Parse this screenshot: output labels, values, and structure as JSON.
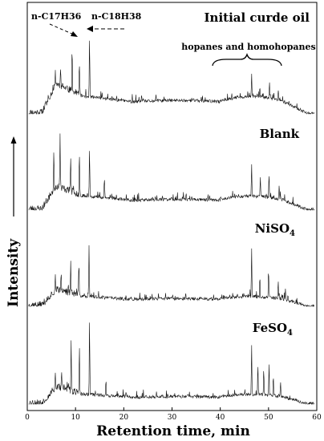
{
  "chart_data": {
    "type": "line",
    "xlabel": "Retention time, min",
    "ylabel": "Intensity",
    "xlim": [
      0,
      60
    ],
    "x_ticks": [
      "0",
      "10",
      "20",
      "30",
      "40",
      "50",
      "60"
    ],
    "grid": false,
    "series": [
      {
        "name": "Initial curde oil",
        "sub": ""
      },
      {
        "name": "Blank",
        "sub": ""
      },
      {
        "name": "NiSO",
        "sub": "4"
      },
      {
        "name": "FeSO",
        "sub": "4"
      }
    ],
    "annotations": {
      "peak_c17": "n-C17H36",
      "peak_c18": "n-C18H38",
      "hopanes": "hopanes and homohopanes"
    }
  }
}
